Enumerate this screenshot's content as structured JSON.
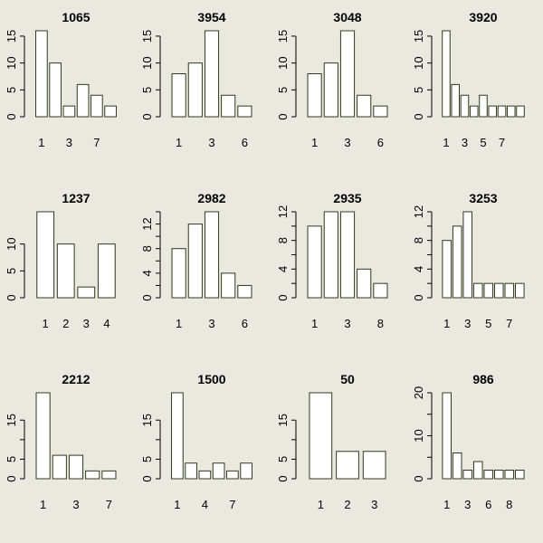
{
  "page": {
    "background": "#ebe9df",
    "bar_fill": "#ffffff",
    "bar_stroke": "#2e3a1e"
  },
  "chart_data": [
    {
      "type": "bar",
      "title": "1065",
      "values": [
        16,
        10,
        2,
        6,
        4,
        2
      ],
      "x_ticks": [
        "1",
        "3",
        "7"
      ],
      "x_tick_positions": [
        1,
        3,
        5
      ],
      "y_ticks": [
        0,
        5,
        10,
        15
      ],
      "ylim": [
        0,
        16
      ]
    },
    {
      "type": "bar",
      "title": "3954",
      "values": [
        8,
        10,
        16,
        4,
        2
      ],
      "x_ticks": [
        "1",
        "3",
        "6"
      ],
      "x_tick_positions": [
        1,
        3,
        5
      ],
      "y_ticks": [
        0,
        5,
        10,
        15
      ],
      "ylim": [
        0,
        16
      ]
    },
    {
      "type": "bar",
      "title": "3048",
      "values": [
        8,
        10,
        16,
        4,
        2
      ],
      "x_ticks": [
        "1",
        "3",
        "6"
      ],
      "x_tick_positions": [
        1,
        3,
        5
      ],
      "y_ticks": [
        0,
        5,
        10,
        15
      ],
      "ylim": [
        0,
        16
      ]
    },
    {
      "type": "bar",
      "title": "3920",
      "values": [
        16,
        6,
        4,
        2,
        4,
        2,
        2,
        2,
        2
      ],
      "x_ticks": [
        "1",
        "3",
        "5",
        "7"
      ],
      "x_tick_positions": [
        1,
        3,
        5,
        7
      ],
      "y_ticks": [
        0,
        5,
        10,
        15
      ],
      "ylim": [
        0,
        16
      ]
    },
    {
      "type": "bar",
      "title": "1237",
      "values": [
        16,
        10,
        2,
        10
      ],
      "x_ticks": [
        "1",
        "2",
        "3",
        "4"
      ],
      "x_tick_positions": [
        1,
        2,
        3,
        4
      ],
      "y_ticks": [
        0,
        5,
        10
      ],
      "ylim": [
        0,
        16
      ]
    },
    {
      "type": "bar",
      "title": "2982",
      "values": [
        8,
        12,
        14,
        4,
        2
      ],
      "x_ticks": [
        "1",
        "3",
        "6"
      ],
      "x_tick_positions": [
        1,
        3,
        5
      ],
      "y_ticks": [
        0,
        2,
        4,
        6,
        8,
        10,
        12,
        14
      ],
      "y_tick_labels": [
        "0",
        "",
        "4",
        "",
        "8",
        "",
        "12",
        ""
      ],
      "ylim": [
        0,
        14
      ]
    },
    {
      "type": "bar",
      "title": "2935",
      "values": [
        10,
        12,
        12,
        4,
        2
      ],
      "x_ticks": [
        "1",
        "3",
        "8"
      ],
      "x_tick_positions": [
        1,
        3,
        5
      ],
      "y_ticks": [
        0,
        2,
        4,
        6,
        8,
        10,
        12
      ],
      "y_tick_labels": [
        "0",
        "",
        "4",
        "",
        "8",
        "",
        "12"
      ],
      "ylim": [
        0,
        12
      ]
    },
    {
      "type": "bar",
      "title": "3253",
      "values": [
        8,
        10,
        12,
        2,
        2,
        2,
        2,
        2
      ],
      "x_ticks": [
        "1",
        "3",
        "5",
        "7"
      ],
      "x_tick_positions": [
        1,
        3,
        5,
        7
      ],
      "y_ticks": [
        0,
        2,
        4,
        6,
        8,
        10,
        12
      ],
      "y_tick_labels": [
        "0",
        "",
        "4",
        "",
        "8",
        "",
        "12"
      ],
      "ylim": [
        0,
        12
      ]
    },
    {
      "type": "bar",
      "title": "2212",
      "values": [
        22,
        6,
        6,
        2,
        2
      ],
      "x_ticks": [
        "1",
        "3",
        "7"
      ],
      "x_tick_positions": [
        1,
        3,
        5
      ],
      "y_ticks": [
        0,
        5,
        10,
        15
      ],
      "y_tick_labels": [
        "0",
        "5",
        "",
        "15"
      ],
      "ylim": [
        0,
        22
      ]
    },
    {
      "type": "bar",
      "title": "1500",
      "values": [
        22,
        4,
        2,
        4,
        2,
        4
      ],
      "x_ticks": [
        "1",
        "4",
        "7"
      ],
      "x_tick_positions": [
        1,
        3,
        5
      ],
      "y_ticks": [
        0,
        5,
        10,
        15
      ],
      "y_tick_labels": [
        "0",
        "5",
        "",
        "15"
      ],
      "ylim": [
        0,
        22
      ]
    },
    {
      "type": "bar",
      "title": "50",
      "values": [
        22,
        7,
        7
      ],
      "x_ticks": [
        "1",
        "2",
        "3"
      ],
      "x_tick_positions": [
        1,
        2,
        3
      ],
      "y_ticks": [
        0,
        5,
        10,
        15
      ],
      "y_tick_labels": [
        "0",
        "5",
        "",
        "15"
      ],
      "ylim": [
        0,
        22
      ]
    },
    {
      "type": "bar",
      "title": "986",
      "values": [
        20,
        6,
        2,
        4,
        2,
        2,
        2,
        2
      ],
      "x_ticks": [
        "1",
        "3",
        "6",
        "8"
      ],
      "x_tick_positions": [
        1,
        3,
        5,
        7
      ],
      "y_ticks": [
        0,
        5,
        10,
        15,
        20
      ],
      "y_tick_labels": [
        "0",
        "",
        "10",
        "",
        "20"
      ],
      "ylim": [
        0,
        20
      ]
    }
  ]
}
